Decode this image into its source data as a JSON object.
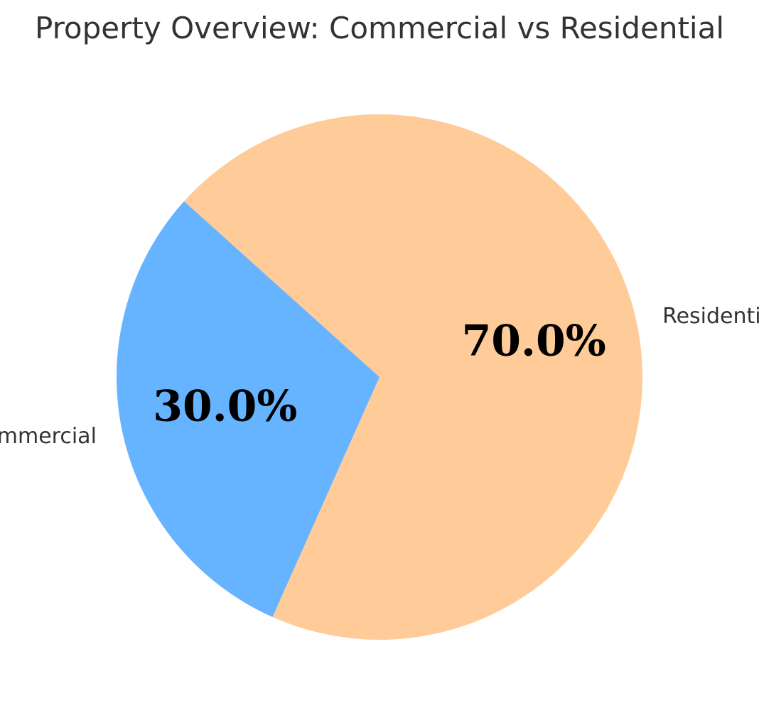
{
  "chart_data": {
    "type": "pie",
    "title": "Property Overview: Commercial vs Residential",
    "slices": [
      {
        "label": "Commercial",
        "value": 30.0,
        "pct_label": "30.0%",
        "color": "#66b3ff"
      },
      {
        "label": "Residential",
        "value": 70.0,
        "pct_label": "70.0%",
        "color": "#ffcc99"
      }
    ]
  }
}
